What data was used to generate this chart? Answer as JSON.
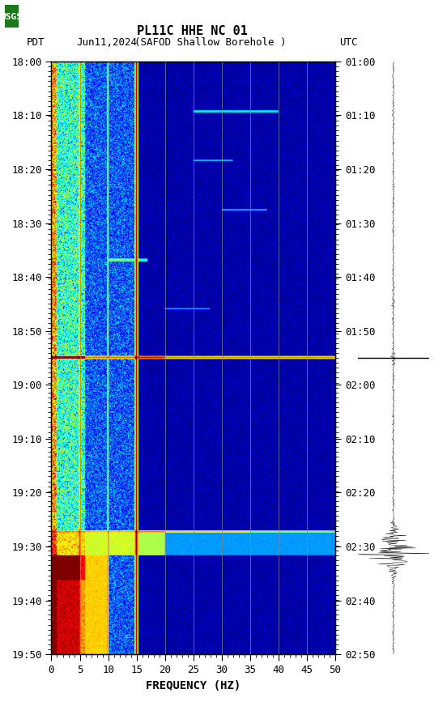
{
  "title_line1": "PL11C HHE NC 01",
  "title_line2": "(SAFOD Shallow Borehole )",
  "date": "Jun11,2024",
  "timezone_left": "PDT",
  "timezone_right": "UTC",
  "freq_min": 0,
  "freq_max": 50,
  "freq_label": "FREQUENCY (HZ)",
  "freq_ticks": [
    0,
    5,
    10,
    15,
    20,
    25,
    30,
    35,
    40,
    45,
    50
  ],
  "time_left_ticks": [
    "18:00",
    "18:10",
    "18:20",
    "18:30",
    "18:40",
    "18:50",
    "19:00",
    "19:10",
    "19:20",
    "19:30",
    "19:40",
    "19:50"
  ],
  "time_right_ticks": [
    "01:00",
    "01:10",
    "01:20",
    "01:30",
    "01:40",
    "01:50",
    "02:00",
    "02:10",
    "02:20",
    "02:30",
    "02:40",
    "02:50"
  ],
  "vertical_lines_freq": [
    5,
    10,
    15,
    20,
    25,
    30,
    35,
    40,
    45
  ],
  "colormap": "jet",
  "bg_color": "#ffffff",
  "n_time": 1200,
  "n_freq": 500,
  "noise_seed": 42
}
